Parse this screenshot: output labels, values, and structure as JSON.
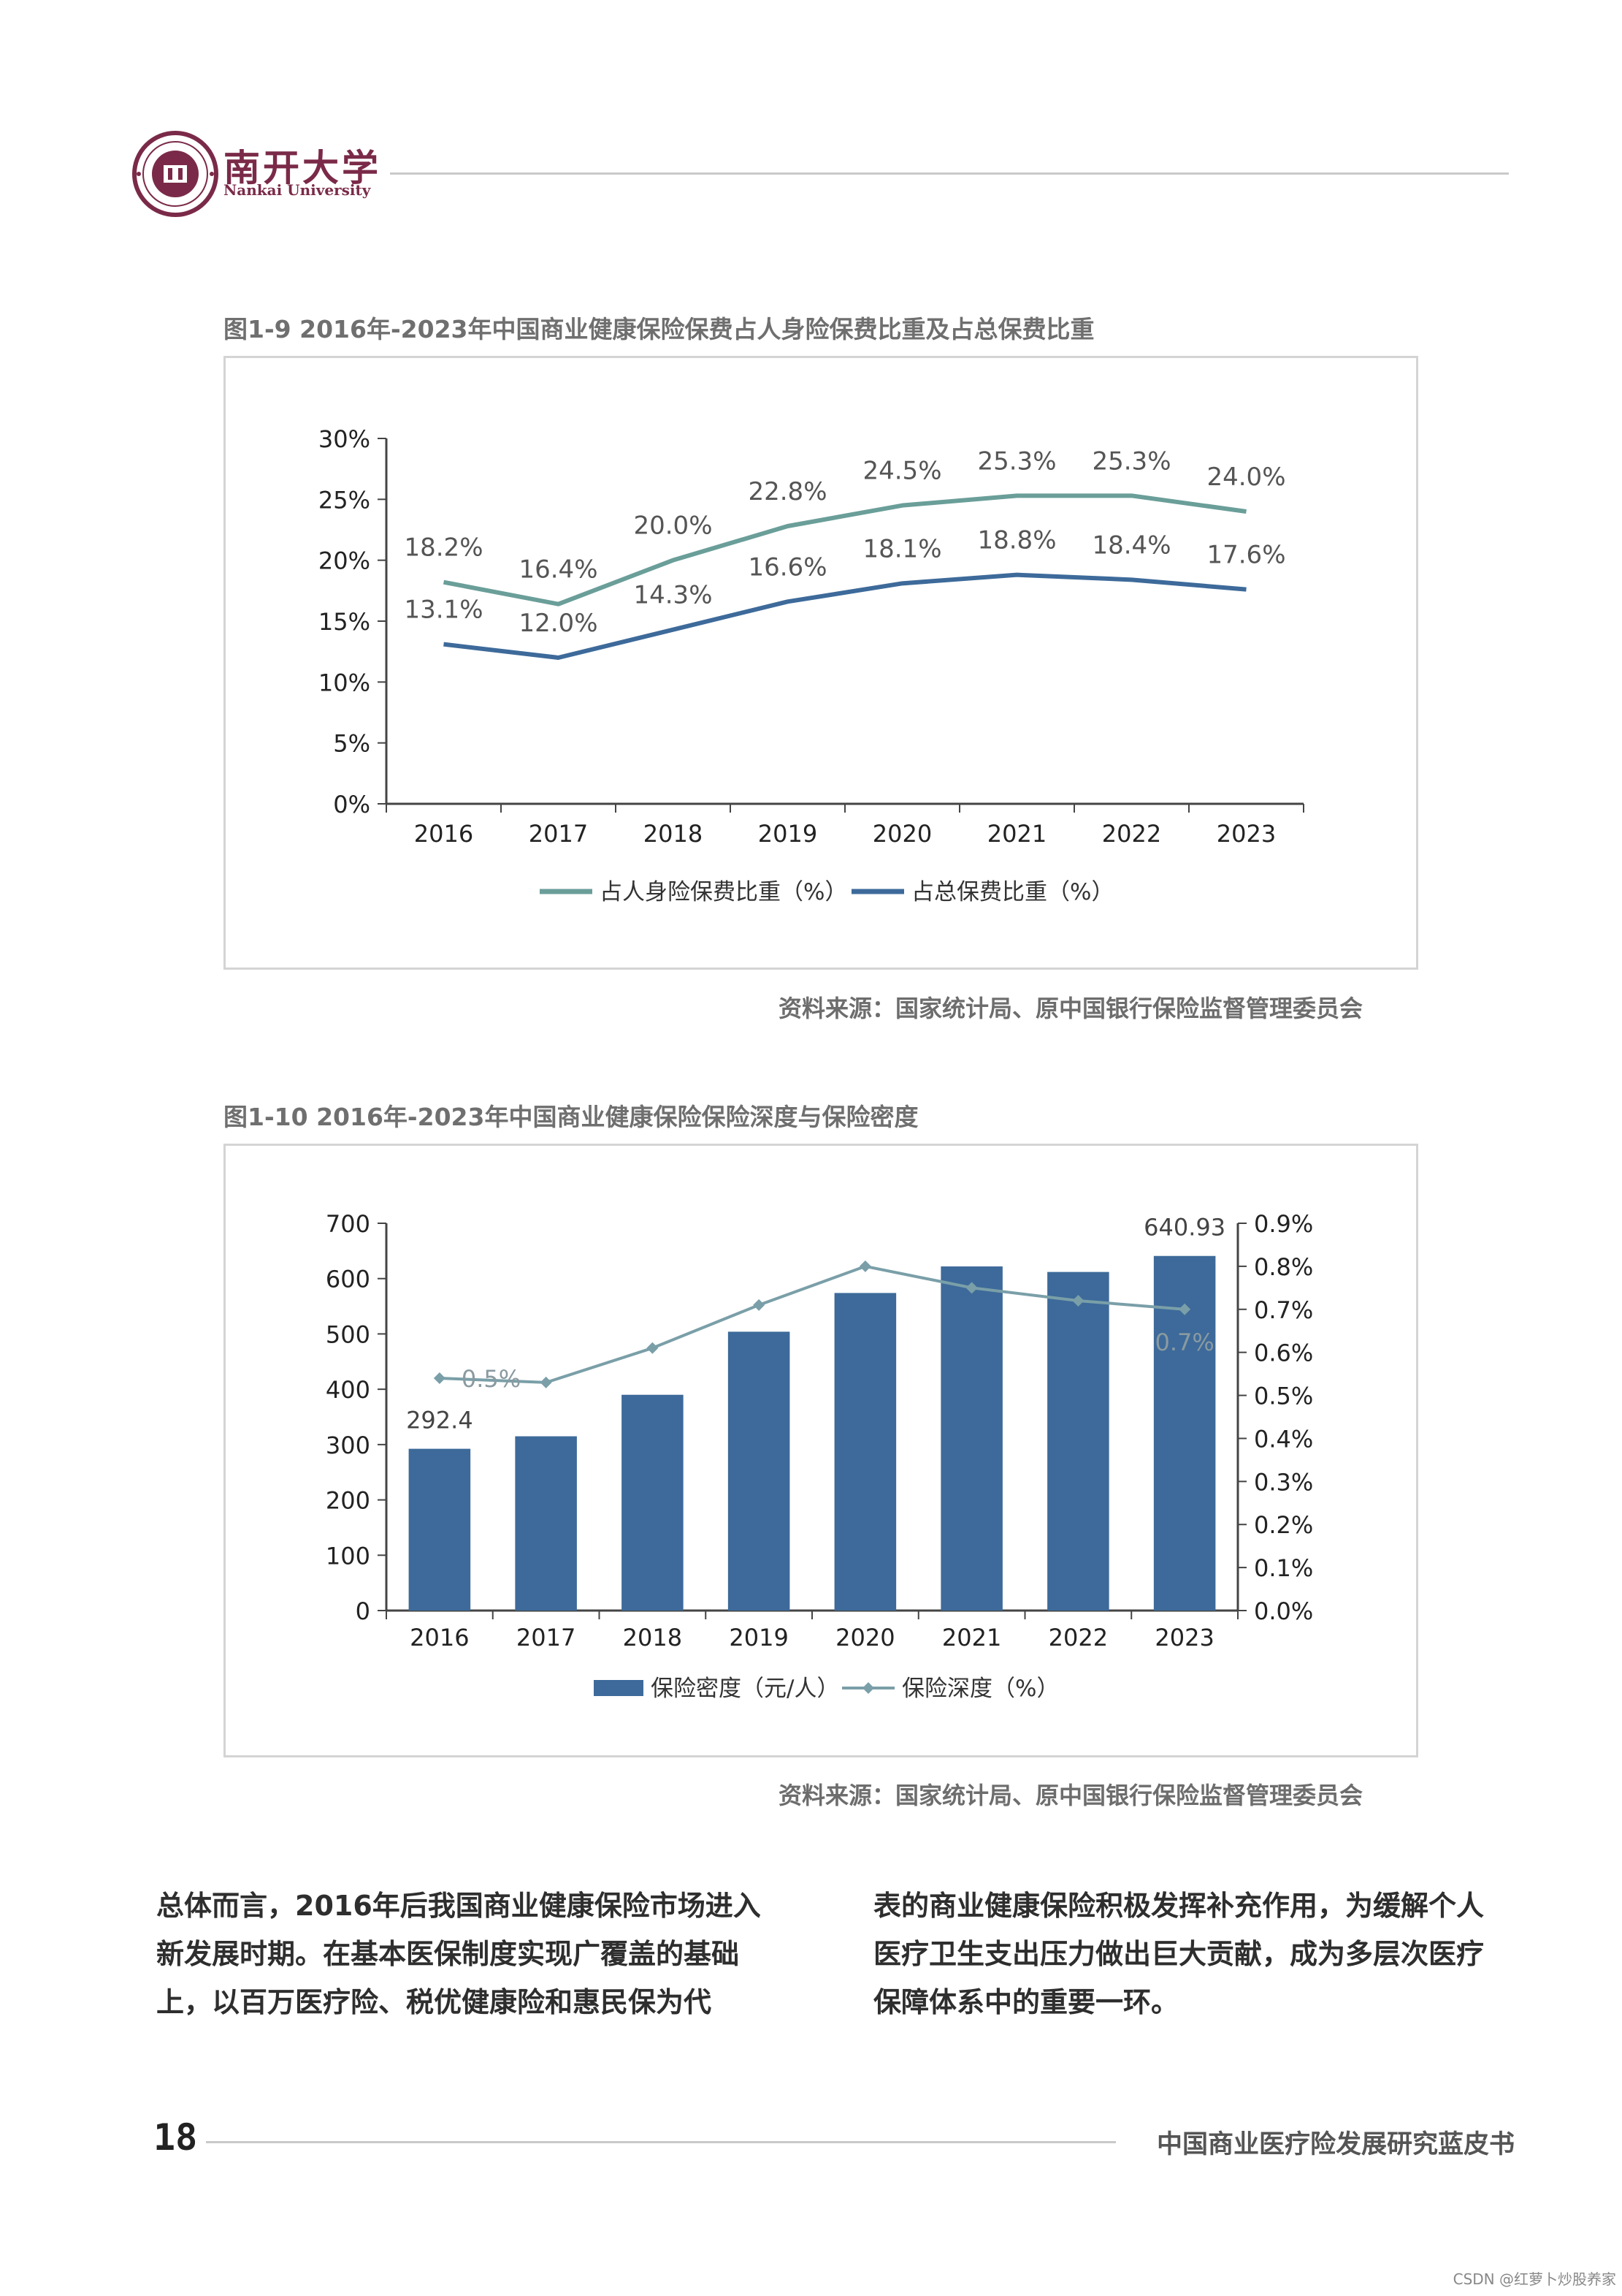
{
  "header": {
    "logo_cn": "南开大学",
    "logo_en": "Nankai University",
    "seal_text": "NANKAI UNIVERSITY 1919"
  },
  "figure1": {
    "title": "图1-9 2016年-2023年中国商业健康保险保费占人身险保费比重及占总保费比重",
    "source": "资料来源：国家统计局、原中国银行保险监督管理委员会",
    "chart_data": {
      "type": "line",
      "categories": [
        "2016",
        "2017",
        "2018",
        "2019",
        "2020",
        "2021",
        "2022",
        "2023"
      ],
      "series": [
        {
          "name": "占人身险保费比重（%）",
          "values": [
            18.2,
            16.4,
            20.0,
            22.8,
            24.5,
            25.3,
            25.3,
            24.0
          ],
          "labels": [
            "18.2%",
            "16.4%",
            "20.0%",
            "22.8%",
            "24.5%",
            "25.3%",
            "25.3%",
            "24.0%"
          ],
          "color": "#6a9e99"
        },
        {
          "name": "占总保费比重（%）",
          "values": [
            13.1,
            12.0,
            14.3,
            16.6,
            18.1,
            18.8,
            18.4,
            17.6
          ],
          "labels": [
            "13.1%",
            "12.0%",
            "14.3%",
            "16.6%",
            "18.1%",
            "18.8%",
            "18.4%",
            "17.6%"
          ],
          "color": "#3d6a9a"
        }
      ],
      "ylim": [
        0,
        30
      ],
      "yticks": [
        "0%",
        "5%",
        "10%",
        "15%",
        "20%",
        "25%",
        "30%"
      ],
      "legend": "bottom",
      "grid": false
    }
  },
  "figure2": {
    "title": "图1-10 2016年-2023年中国商业健康保险保险深度与保险密度",
    "source": "资料来源：国家统计局、原中国银行保险监督管理委员会",
    "chart_data": {
      "type": "bar",
      "categories": [
        "2016",
        "2017",
        "2018",
        "2019",
        "2020",
        "2021",
        "2022",
        "2023"
      ],
      "series": [
        {
          "name": "保险密度（元/人）",
          "type": "bar",
          "axis": "left",
          "values": [
            292.4,
            315,
            390,
            504,
            574,
            622,
            612,
            640.93
          ],
          "labels": [
            "292.4",
            "",
            "",
            "",
            "",
            "",
            "",
            "640.93"
          ],
          "color": "#3d6a9a"
        },
        {
          "name": "保险深度（%）",
          "type": "line",
          "axis": "right",
          "values": [
            0.54,
            0.53,
            0.61,
            0.71,
            0.8,
            0.75,
            0.72,
            0.7
          ],
          "labels": [
            "0.5%",
            "",
            "",
            "",
            "",
            "",
            "",
            "0.7%"
          ],
          "color": "#7a9fa8"
        }
      ],
      "ylim_left": [
        0,
        700
      ],
      "yticks_left": [
        "0",
        "100",
        "200",
        "300",
        "400",
        "500",
        "600",
        "700"
      ],
      "ylim_right": [
        0,
        0.9
      ],
      "yticks_right": [
        "0.0%",
        "0.1%",
        "0.2%",
        "0.3%",
        "0.4%",
        "0.5%",
        "0.6%",
        "0.7%",
        "0.8%",
        "0.9%"
      ],
      "legend": "bottom",
      "grid": false
    }
  },
  "body": {
    "col1": "总体而言，2016年后我国商业健康保险市场进入新发展时期。在基本医保制度实现广覆盖的基础上，以百万医疗险、税优健康险和惠民保为代",
    "col2": "表的商业健康保险积极发挥补充作用，为缓解个人医疗卫生支出压力做出巨大贡献，成为多层次医疗保障体系中的重要一环。"
  },
  "footer": {
    "page_number": "18",
    "book_title": "中国商业医疗险发展研究蓝皮书",
    "watermark": "CSDN @红萝卜炒股养家"
  }
}
